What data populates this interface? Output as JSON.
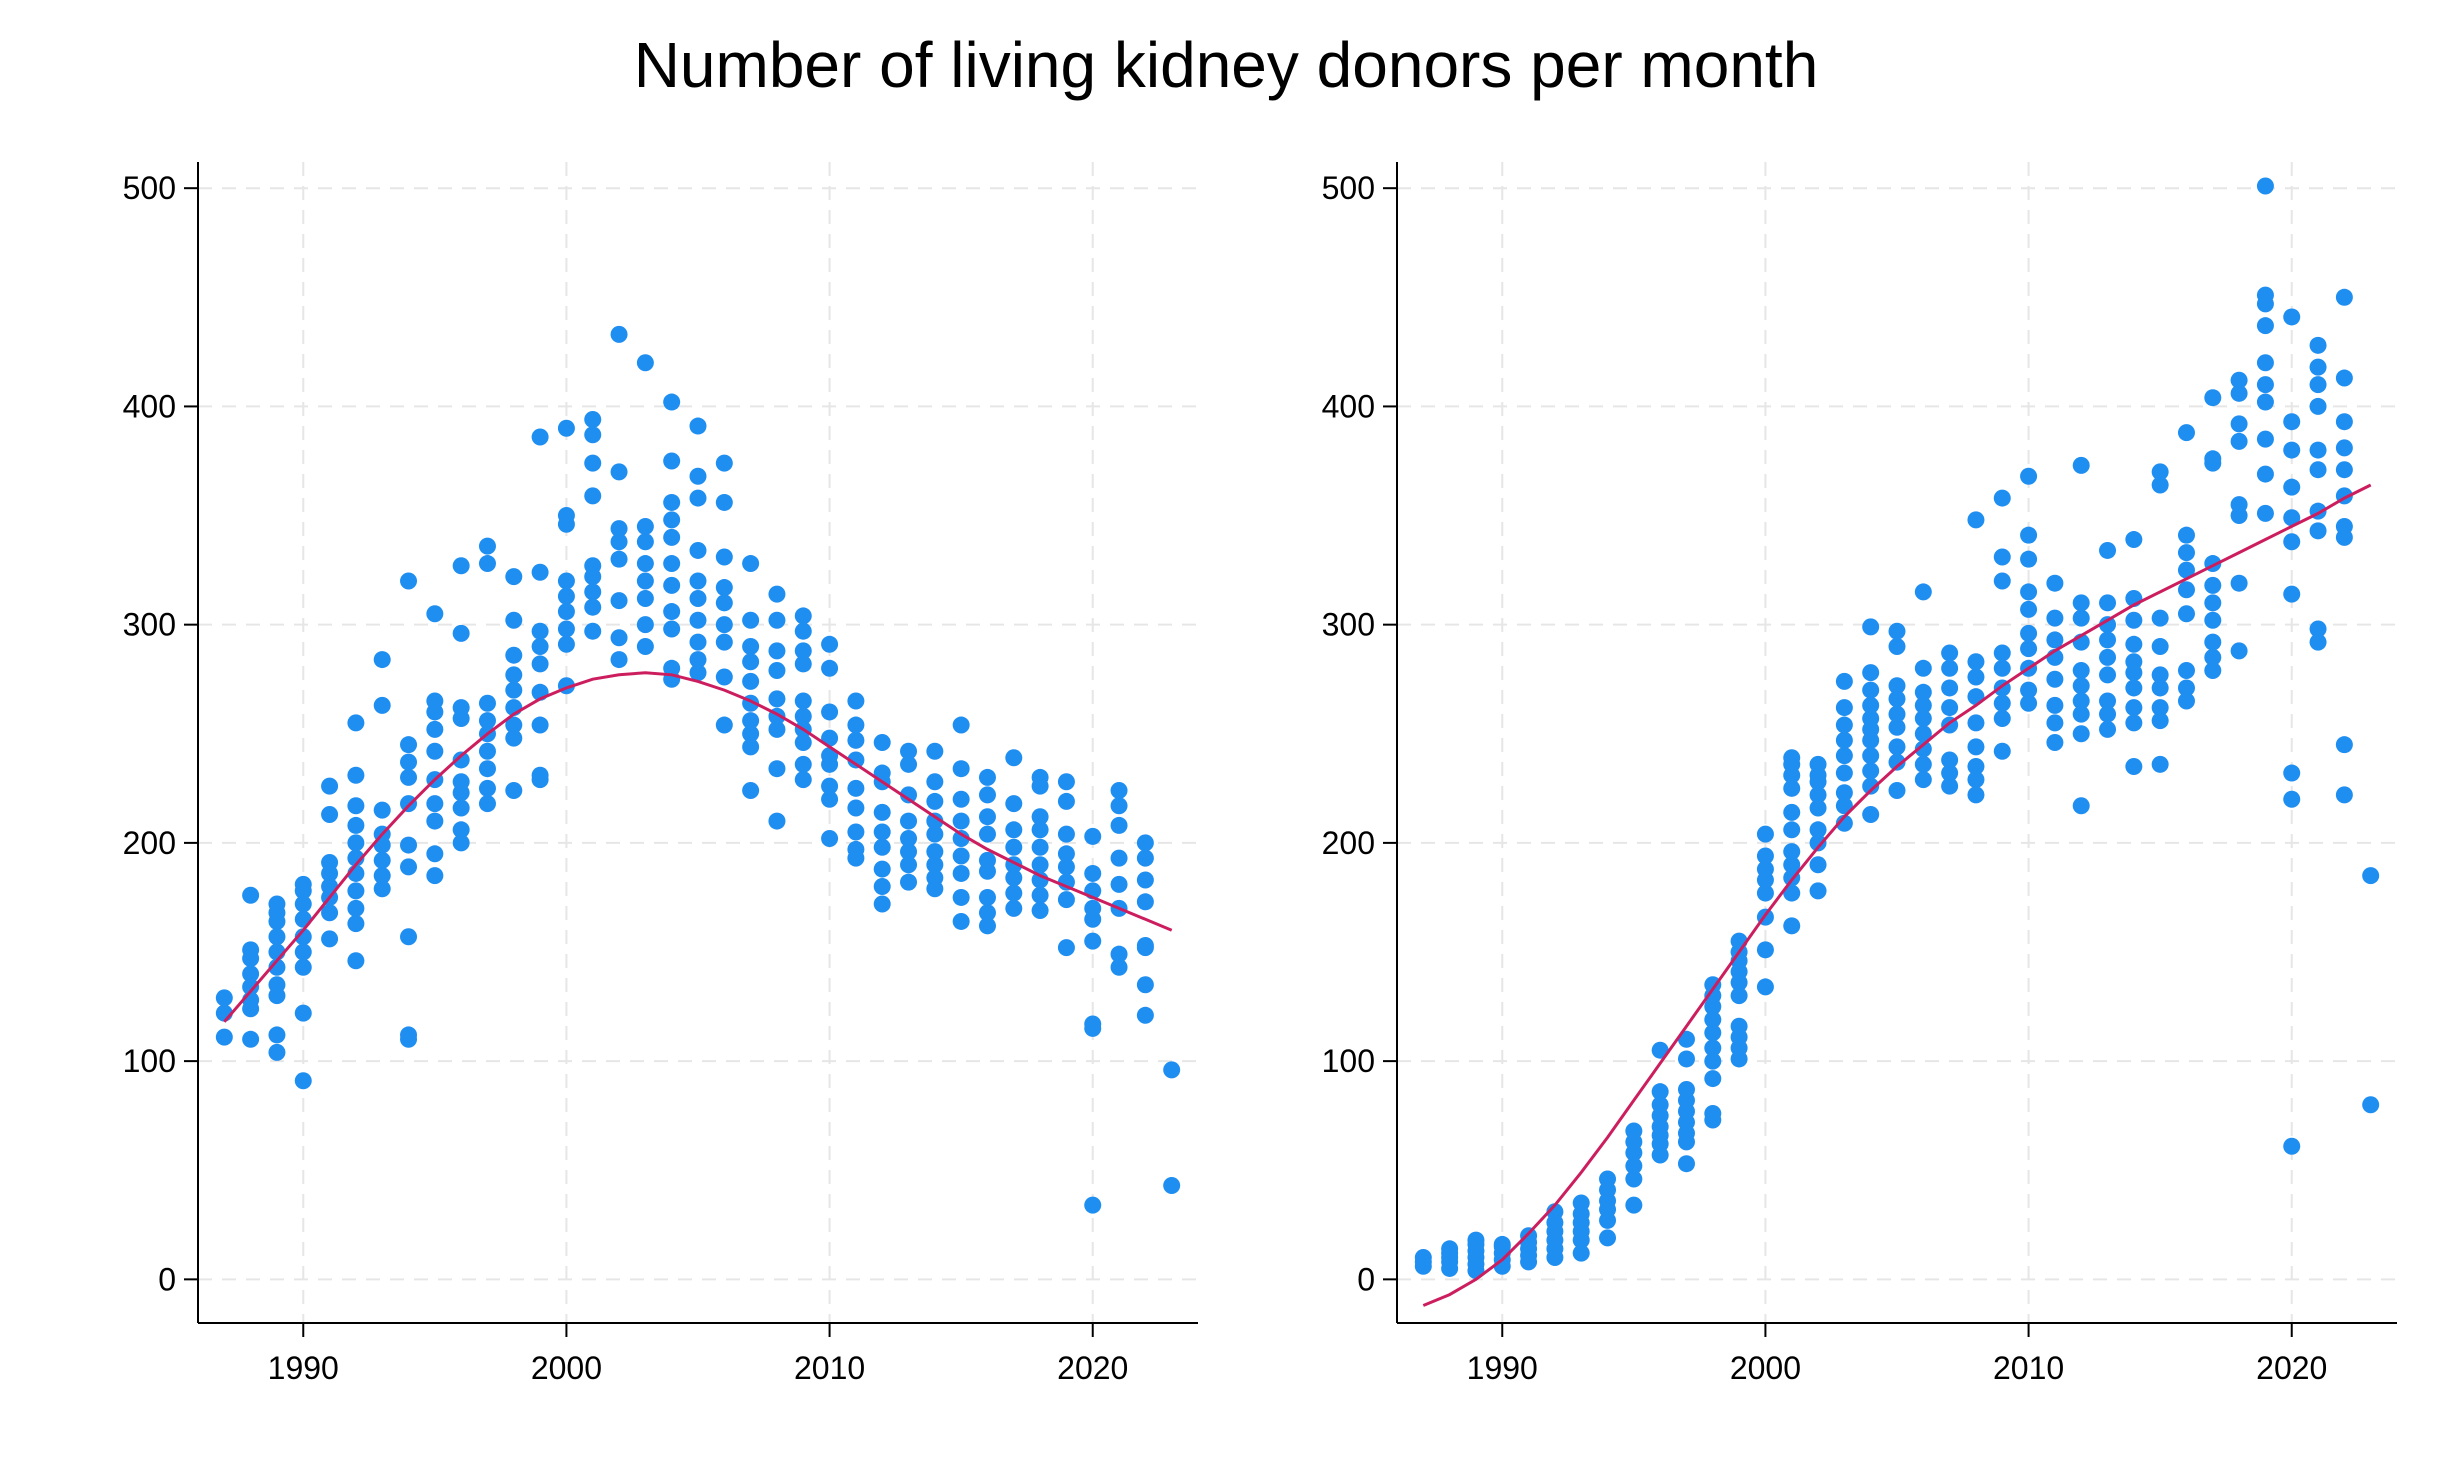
{
  "title": "Number of living kidney donors per month",
  "colors": {
    "points": "#1f8ef1",
    "fit": "#cc1e5e",
    "grid": "#e6e6e6",
    "axis": "#000000"
  },
  "chart_data": [
    {
      "type": "scatter",
      "title": "",
      "xlabel": "",
      "ylabel": "",
      "xlim": [
        1986,
        2024
      ],
      "ylim": [
        -20,
        512
      ],
      "xticks": [
        1990,
        2000,
        2010,
        2020
      ],
      "yticks": [
        0,
        100,
        200,
        300,
        400,
        500
      ],
      "grid": true,
      "legend": "none",
      "points": {
        "1987": [
          111,
          122,
          129
        ],
        "1988": [
          110,
          124,
          128,
          134,
          140,
          147,
          151,
          176
        ],
        "1989": [
          104,
          112,
          130,
          135,
          143,
          150,
          157,
          164,
          168,
          172
        ],
        "1990": [
          91,
          122,
          143,
          150,
          157,
          165,
          172,
          178,
          181
        ],
        "1991": [
          156,
          168,
          175,
          180,
          186,
          191,
          213,
          226
        ],
        "1992": [
          146,
          163,
          170,
          178,
          186,
          193,
          200,
          208,
          217,
          231,
          255
        ],
        "1993": [
          179,
          185,
          192,
          199,
          204,
          215,
          263,
          284
        ],
        "1994": [
          110,
          112,
          157,
          189,
          199,
          218,
          230,
          237,
          245,
          320
        ],
        "1995": [
          185,
          195,
          210,
          218,
          229,
          242,
          252,
          260,
          265,
          305
        ],
        "1996": [
          200,
          206,
          216,
          223,
          228,
          238,
          257,
          262,
          296,
          327
        ],
        "1997": [
          218,
          225,
          234,
          242,
          250,
          256,
          264,
          328,
          336
        ],
        "1998": [
          224,
          248,
          254,
          262,
          270,
          277,
          286,
          302,
          322
        ],
        "1999": [
          229,
          231,
          254,
          269,
          282,
          290,
          297,
          324,
          386
        ],
        "2000": [
          272,
          291,
          298,
          306,
          313,
          320,
          346,
          350,
          390
        ],
        "2001": [
          297,
          308,
          315,
          322,
          327,
          359,
          374,
          387,
          394
        ],
        "2002": [
          284,
          294,
          311,
          330,
          338,
          344,
          370,
          433
        ],
        "2003": [
          290,
          300,
          312,
          320,
          328,
          338,
          345,
          420
        ],
        "2004": [
          275,
          280,
          298,
          306,
          318,
          328,
          340,
          348,
          356,
          375,
          402
        ],
        "2005": [
          278,
          284,
          292,
          302,
          312,
          320,
          334,
          358,
          368,
          391
        ],
        "2006": [
          254,
          276,
          292,
          300,
          310,
          317,
          331,
          356,
          374
        ],
        "2007": [
          224,
          244,
          250,
          256,
          264,
          274,
          283,
          290,
          302,
          328
        ],
        "2008": [
          210,
          234,
          252,
          258,
          266,
          279,
          288,
          302,
          314
        ],
        "2009": [
          229,
          236,
          246,
          252,
          258,
          265,
          282,
          288,
          297,
          304
        ],
        "2010": [
          202,
          220,
          226,
          236,
          240,
          248,
          260,
          280,
          291
        ],
        "2011": [
          193,
          197,
          205,
          216,
          225,
          238,
          247,
          254,
          265
        ],
        "2012": [
          172,
          180,
          188,
          198,
          205,
          214,
          228,
          232,
          246
        ],
        "2013": [
          182,
          190,
          196,
          202,
          210,
          222,
          236,
          242
        ],
        "2014": [
          179,
          184,
          190,
          196,
          204,
          210,
          219,
          228,
          242
        ],
        "2015": [
          164,
          175,
          186,
          194,
          202,
          210,
          220,
          234,
          254
        ],
        "2016": [
          162,
          168,
          175,
          187,
          192,
          204,
          212,
          222,
          230
        ],
        "2017": [
          170,
          177,
          184,
          190,
          198,
          206,
          218,
          239
        ],
        "2018": [
          169,
          176,
          183,
          190,
          198,
          206,
          212,
          226,
          230
        ],
        "2019": [
          152,
          174,
          182,
          189,
          195,
          204,
          219,
          228
        ],
        "2020": [
          34,
          115,
          117,
          155,
          165,
          170,
          178,
          186,
          203
        ],
        "2021": [
          143,
          149,
          170,
          181,
          193,
          208,
          217,
          224
        ],
        "2022": [
          121,
          135,
          152,
          153,
          173,
          183,
          193,
          200
        ],
        "2023": [
          43,
          96
        ]
      },
      "fit": {
        "x": [
          1987,
          1988,
          1989,
          1990,
          1991,
          1992,
          1993,
          1994,
          1995,
          1996,
          1997,
          1998,
          1999,
          2000,
          2001,
          2002,
          2003,
          2004,
          2005,
          2006,
          2007,
          2008,
          2009,
          2010,
          2011,
          2012,
          2013,
          2014,
          2015,
          2016,
          2017,
          2018,
          2019,
          2020,
          2021,
          2022,
          2023
        ],
        "y": [
          118,
          132,
          146,
          160,
          175,
          190,
          204,
          217,
          229,
          240,
          250,
          259,
          266,
          271,
          275,
          277,
          278,
          277,
          274,
          270,
          265,
          259,
          252,
          244,
          236,
          228,
          220,
          212,
          204,
          197,
          191,
          185,
          180,
          175,
          170,
          165,
          160
        ]
      }
    },
    {
      "type": "scatter",
      "title": "",
      "xlabel": "",
      "ylabel": "",
      "xlim": [
        1986,
        2024
      ],
      "ylim": [
        -20,
        512
      ],
      "xticks": [
        1990,
        2000,
        2010,
        2020
      ],
      "yticks": [
        0,
        100,
        200,
        300,
        400,
        500
      ],
      "grid": true,
      "legend": "none",
      "points": {
        "1987": [
          6,
          8,
          10
        ],
        "1988": [
          5,
          8,
          10,
          12,
          14
        ],
        "1989": [
          4,
          7,
          10,
          13,
          16,
          18
        ],
        "1990": [
          6,
          9,
          12,
          15,
          16
        ],
        "1991": [
          8,
          11,
          14,
          17,
          20
        ],
        "1992": [
          10,
          14,
          18,
          22,
          26,
          31
        ],
        "1993": [
          12,
          18,
          22,
          26,
          30,
          35
        ],
        "1994": [
          19,
          27,
          32,
          36,
          41,
          46
        ],
        "1995": [
          34,
          46,
          52,
          58,
          63,
          68
        ],
        "1996": [
          57,
          62,
          66,
          70,
          75,
          80,
          86,
          105
        ],
        "1997": [
          53,
          63,
          67,
          72,
          77,
          82,
          87,
          101,
          110
        ],
        "1998": [
          73,
          76,
          92,
          100,
          106,
          113,
          119,
          125,
          130,
          135
        ],
        "1999": [
          101,
          106,
          111,
          116,
          130,
          136,
          141,
          146,
          150,
          155
        ],
        "2000": [
          134,
          151,
          166,
          177,
          183,
          188,
          194,
          204
        ],
        "2001": [
          162,
          177,
          184,
          190,
          196,
          206,
          214,
          225,
          231,
          236,
          239
        ],
        "2002": [
          178,
          190,
          200,
          206,
          216,
          222,
          228,
          231,
          236
        ],
        "2003": [
          209,
          217,
          223,
          232,
          240,
          247,
          254,
          262,
          274
        ],
        "2004": [
          213,
          226,
          233,
          240,
          247,
          252,
          257,
          263,
          270,
          278,
          299
        ],
        "2005": [
          224,
          237,
          244,
          253,
          259,
          266,
          272,
          290,
          297
        ],
        "2006": [
          229,
          236,
          243,
          250,
          257,
          263,
          269,
          280,
          315
        ],
        "2007": [
          226,
          232,
          238,
          254,
          262,
          271,
          280,
          287
        ],
        "2008": [
          222,
          229,
          235,
          244,
          255,
          267,
          276,
          283,
          348
        ],
        "2009": [
          242,
          257,
          264,
          271,
          280,
          287,
          320,
          331,
          358
        ],
        "2010": [
          264,
          270,
          280,
          289,
          296,
          307,
          315,
          330,
          341,
          368
        ],
        "2011": [
          246,
          255,
          263,
          275,
          285,
          293,
          303,
          319
        ],
        "2012": [
          217,
          250,
          259,
          265,
          272,
          279,
          292,
          303,
          310,
          373
        ],
        "2013": [
          252,
          259,
          265,
          277,
          285,
          293,
          300,
          310,
          334
        ],
        "2014": [
          235,
          255,
          262,
          271,
          278,
          283,
          291,
          302,
          312,
          339
        ],
        "2015": [
          236,
          256,
          262,
          271,
          277,
          290,
          303,
          364,
          370
        ],
        "2016": [
          265,
          271,
          279,
          305,
          316,
          325,
          333,
          341,
          388
        ],
        "2017": [
          279,
          285,
          292,
          302,
          310,
          318,
          328,
          374,
          376,
          404
        ],
        "2018": [
          288,
          319,
          350,
          355,
          384,
          392,
          406,
          412
        ],
        "2019": [
          351,
          369,
          385,
          402,
          410,
          420,
          437,
          447,
          451,
          501
        ],
        "2020": [
          61,
          220,
          232,
          314,
          338,
          349,
          363,
          380,
          393,
          441
        ],
        "2021": [
          292,
          298,
          343,
          352,
          371,
          380,
          400,
          410,
          418,
          428
        ],
        "2022": [
          222,
          245,
          340,
          345,
          359,
          371,
          381,
          393,
          413,
          450
        ],
        "2023": [
          80,
          185
        ]
      },
      "fit": {
        "x": [
          1987,
          1988,
          1989,
          1990,
          1991,
          1992,
          1993,
          1994,
          1995,
          1996,
          1997,
          1998,
          1999,
          2000,
          2001,
          2002,
          2003,
          2004,
          2005,
          2006,
          2007,
          2008,
          2009,
          2010,
          2011,
          2012,
          2013,
          2014,
          2015,
          2016,
          2017,
          2018,
          2019,
          2020,
          2021,
          2022,
          2023
        ],
        "y": [
          -12,
          -7,
          0,
          9,
          21,
          34,
          49,
          65,
          82,
          99,
          116,
          133,
          150,
          167,
          183,
          198,
          212,
          224,
          235,
          245,
          255,
          263,
          272,
          280,
          288,
          295,
          302,
          309,
          315,
          321,
          327,
          333,
          339,
          345,
          351,
          358,
          364
        ]
      }
    }
  ]
}
